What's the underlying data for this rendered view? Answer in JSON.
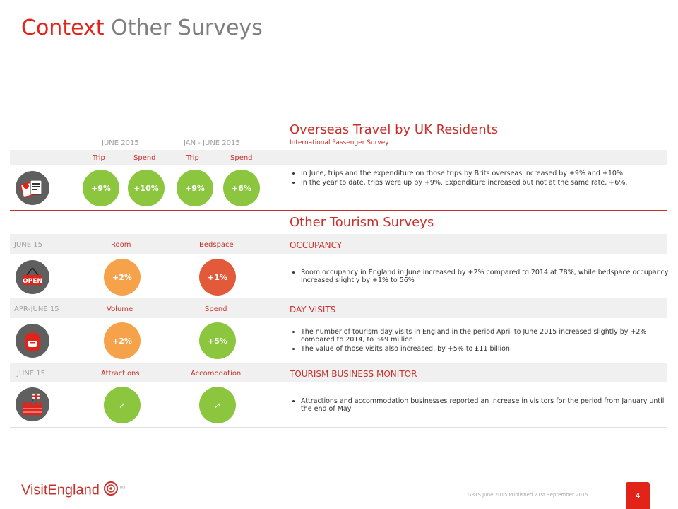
{
  "title": {
    "part1": "Context",
    "part2": "Other Surveys"
  },
  "section1": {
    "period1": "JUNE 2015",
    "period2": "JAN - JUNE 2015",
    "col_trip1": "Trip",
    "col_spend1": "Spend",
    "col_trip2": "Trip",
    "col_spend2": "Spend",
    "title": "Overseas Travel by UK Residents",
    "subtitle": "International Passenger Survey",
    "values": [
      "+9%",
      "+10%",
      "+9%",
      "+6%"
    ],
    "bullets": [
      "In June, trips and the expenditure on those trips by Brits overseas increased by +9% and +10%",
      "In the year to date, trips were up by +9%. Expenditure increased but not at the same rate, +6%."
    ]
  },
  "section2": {
    "title": "Other Tourism Surveys",
    "occupancy": {
      "period": "JUNE 15",
      "col1": "Room",
      "col2": "Bedspace",
      "head": "OCCUPANCY",
      "values": [
        "+2%",
        "+1%"
      ],
      "bullets": [
        "Room occupancy in England in June increased by +2% compared to 2014 at 78%, while bedspace occupancy increased slightly by +1% to 56%"
      ]
    },
    "dayvisits": {
      "period": "APR-JUNE 15",
      "col1": "Volume",
      "col2": "Spend",
      "head": "DAY VISITS",
      "values": [
        "+2%",
        "+5%"
      ],
      "bullets": [
        "The number of tourism day visits in England in the period April to June 2015 increased slightly by +2% compared to 2014, to 349 million",
        "The value of those visits also increased, by +5% to £11 billion"
      ]
    },
    "tbm": {
      "period": "JUNE 15",
      "col1": "Attractions",
      "col2": "Accomodation",
      "head": "TOURISM BUSINESS MONITOR",
      "arrow": "➚",
      "bullets": [
        "Attractions and accommodation businesses reported an increase in visitors for the period from January until the end of May"
      ]
    }
  },
  "footer": {
    "logo": "VisitEngland",
    "tm": "TM",
    "note": "GBTS June 2015 Published 21st September 2015",
    "page": "4"
  },
  "colors": {
    "accent": "#e2231a",
    "green": "#8cc63f",
    "orange": "#f5a24a",
    "red_circle": "#e35a3a"
  },
  "icons": [
    "travel-documents-icon",
    "open-sign-icon",
    "backpack-icon",
    "castle-flag-icon",
    "rose-logo-icon"
  ]
}
